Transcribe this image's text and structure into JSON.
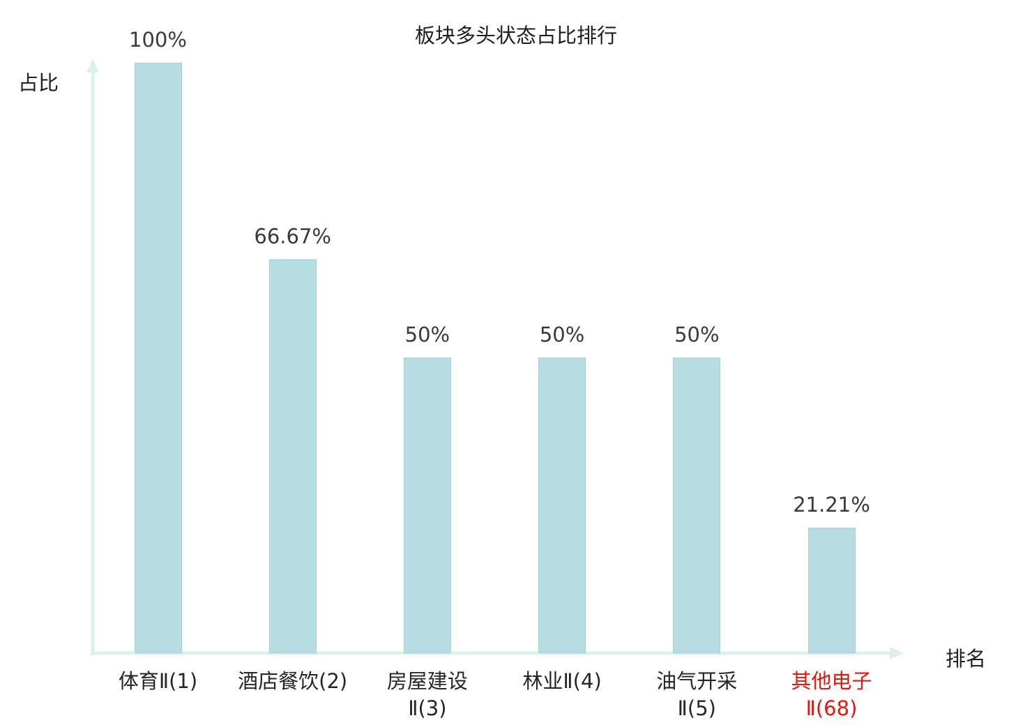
{
  "title": "板块多头状态占比排行",
  "ylabel": "占比",
  "xlabel": "排名",
  "colors": {
    "bar_fill": "#b7dde2",
    "bar_border": "#a5d2d8",
    "axis": "#d9f0ec",
    "text": "#3a3a3a",
    "highlight": "#e8150b"
  },
  "chart_data": {
    "type": "bar",
    "title": "板块多头状态占比排行",
    "xlabel": "排名",
    "ylabel": "占比",
    "ylim": [
      0,
      100
    ],
    "grid": false,
    "legend": "none",
    "categories": [
      "体育Ⅱ(1)",
      "酒店餐饮(2)",
      "房屋建设Ⅱ(3)",
      "林业Ⅱ(4)",
      "油气开采Ⅱ(5)",
      "其他电子Ⅱ(68)"
    ],
    "category_lines": [
      [
        "体育Ⅱ(1)"
      ],
      [
        "酒店餐饮(2)"
      ],
      [
        "房屋建设",
        "Ⅱ(3)"
      ],
      [
        "林业Ⅱ(4)"
      ],
      [
        "油气开采",
        "Ⅱ(5)"
      ],
      [
        "其他电子",
        "Ⅱ(68)"
      ]
    ],
    "values": [
      100,
      66.67,
      50,
      50,
      50,
      21.21
    ],
    "value_labels": [
      "100%",
      "66.67%",
      "50%",
      "50%",
      "50%",
      "21.21%"
    ],
    "highlight_index": 5
  }
}
